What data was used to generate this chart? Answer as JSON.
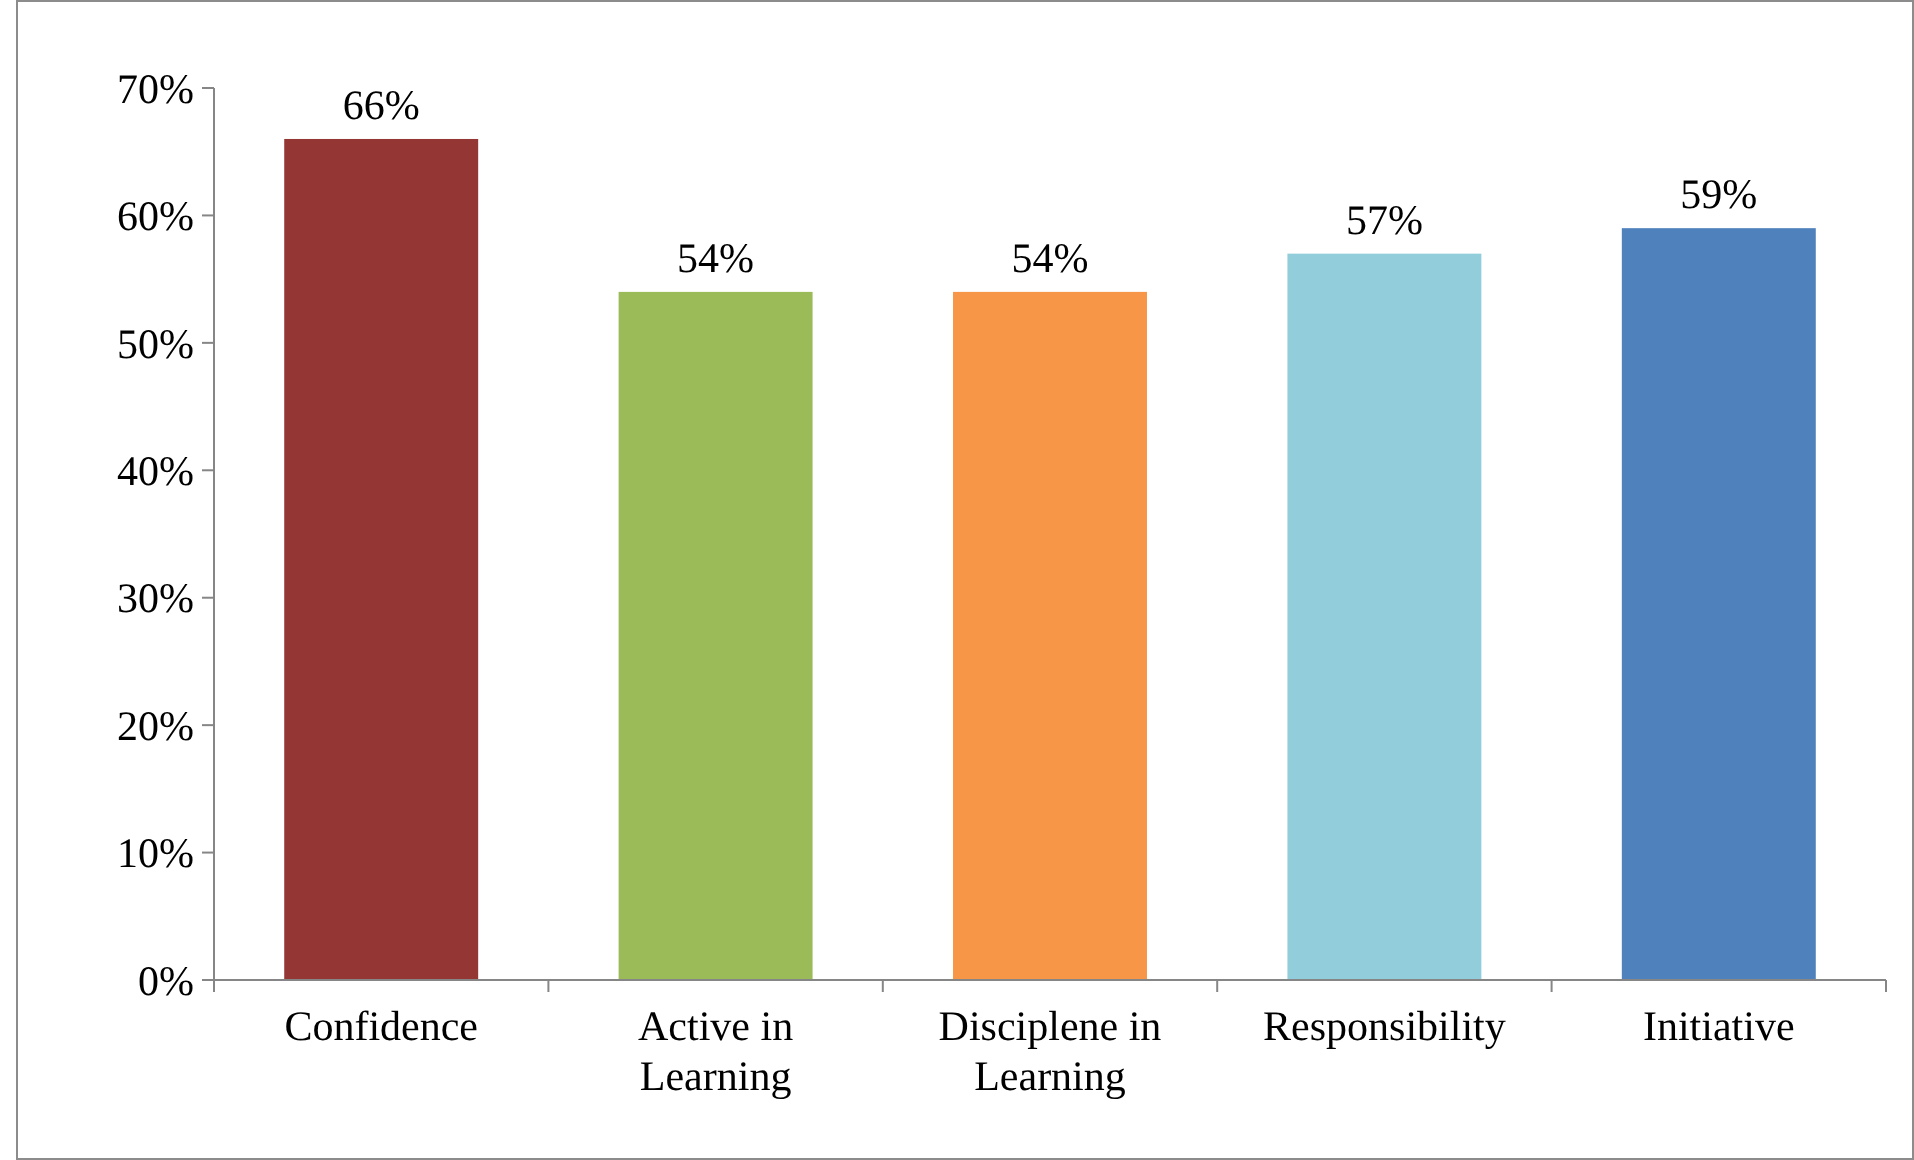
{
  "chart_data": {
    "type": "bar",
    "categories": [
      "Confidence",
      "Active in Learning",
      "Disciplene in Learning",
      "Responsibility",
      "Initiative"
    ],
    "values": [
      66,
      54,
      54,
      57,
      59
    ],
    "colors": [
      "#943634",
      "#9bbb59",
      "#f79646",
      "#92cddc",
      "#4f81bd"
    ],
    "value_labels": [
      "66%",
      "54%",
      "54%",
      "57%",
      "59%"
    ],
    "ylim": [
      0,
      70
    ],
    "yticks": [
      {
        "value": 0,
        "label": "0%"
      },
      {
        "value": 10,
        "label": "10%"
      },
      {
        "value": 20,
        "label": "20%"
      },
      {
        "value": 30,
        "label": "30%"
      },
      {
        "value": 40,
        "label": "40%"
      },
      {
        "value": 50,
        "label": "50%"
      },
      {
        "value": 60,
        "label": "60%"
      },
      {
        "value": 70,
        "label": "70%"
      }
    ],
    "legend": false
  }
}
